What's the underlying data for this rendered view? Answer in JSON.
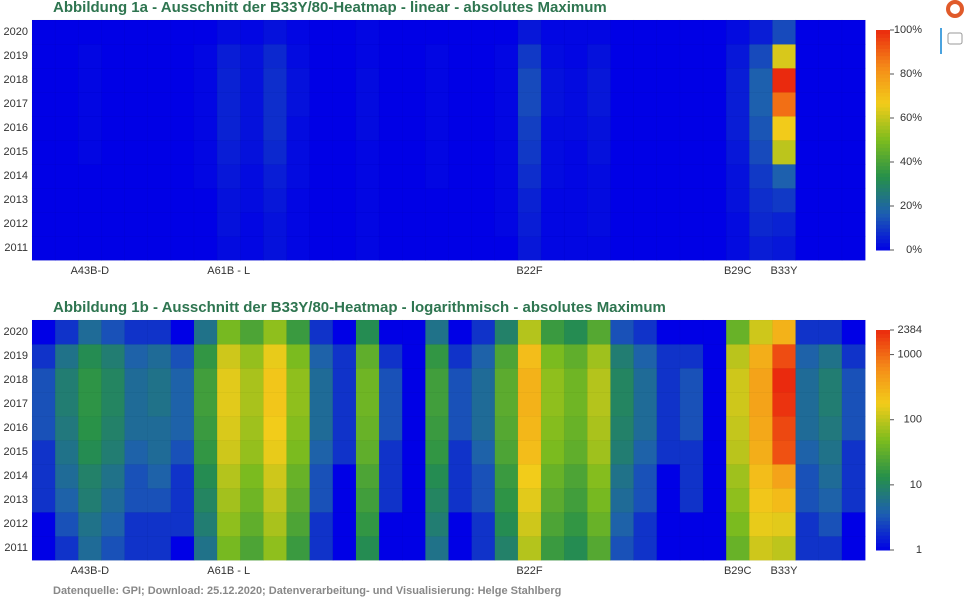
{
  "chart_data": [
    {
      "type": "heatmap",
      "title": "Abbildung 1a - Ausschnitt der B33Y/80-Heatmap - linear - absolutes Maximum",
      "categories": [
        null,
        null,
        "A43B-D",
        null,
        null,
        null,
        null,
        null,
        "A61B  -  L",
        null,
        null,
        null,
        null,
        null,
        null,
        null,
        null,
        null,
        null,
        null,
        null,
        "B22F",
        null,
        null,
        null,
        null,
        null,
        null,
        null,
        null,
        "B29C",
        null,
        "B33Y",
        null,
        null,
        null
      ],
      "y": [
        2011,
        2012,
        2013,
        2014,
        2015,
        2016,
        2017,
        2018,
        2019,
        2020
      ],
      "z": [
        [
          0,
          0,
          0,
          0,
          0,
          0,
          0,
          0,
          2,
          1,
          3,
          1,
          0,
          0,
          1,
          0,
          0,
          0,
          0,
          0,
          0,
          4,
          1,
          1,
          1,
          0,
          0,
          0,
          0,
          0,
          2,
          5,
          4,
          0,
          0,
          0
        ],
        [
          0,
          0,
          0,
          0,
          0,
          0,
          0,
          0,
          3,
          1,
          3,
          1,
          0,
          0,
          1,
          0,
          0,
          0,
          0,
          0,
          1,
          5,
          1,
          1,
          2,
          0,
          0,
          0,
          0,
          0,
          2,
          7,
          6,
          0,
          0,
          0
        ],
        [
          0,
          0,
          0,
          0,
          0,
          0,
          0,
          0,
          3,
          2,
          4,
          1,
          0,
          0,
          1,
          0,
          0,
          0,
          0,
          0,
          1,
          6,
          1,
          1,
          2,
          0,
          0,
          0,
          0,
          0,
          3,
          8,
          10,
          0,
          0,
          0
        ],
        [
          0,
          0,
          0,
          0,
          0,
          0,
          0,
          1,
          4,
          2,
          5,
          2,
          0,
          0,
          1,
          0,
          0,
          1,
          0,
          0,
          1,
          8,
          2,
          1,
          2,
          0,
          0,
          0,
          0,
          0,
          3,
          10,
          17,
          0,
          0,
          0
        ],
        [
          0,
          0,
          1,
          0,
          0,
          0,
          0,
          1,
          5,
          3,
          7,
          2,
          0,
          0,
          1,
          0,
          0,
          1,
          0,
          0,
          1,
          10,
          2,
          1,
          3,
          0,
          0,
          0,
          0,
          0,
          4,
          13,
          59,
          0,
          0,
          0
        ],
        [
          0,
          0,
          1,
          0,
          0,
          0,
          0,
          1,
          6,
          3,
          8,
          2,
          0,
          0,
          2,
          0,
          0,
          1,
          0,
          0,
          1,
          11,
          2,
          2,
          3,
          0,
          0,
          0,
          0,
          0,
          5,
          15,
          67,
          0,
          0,
          0
        ],
        [
          0,
          0,
          1,
          0,
          0,
          0,
          0,
          1,
          6,
          3,
          8,
          3,
          0,
          0,
          2,
          0,
          0,
          1,
          0,
          0,
          1,
          13,
          3,
          2,
          4,
          0,
          0,
          0,
          0,
          0,
          5,
          17,
          88,
          0,
          0,
          0
        ],
        [
          0,
          0,
          1,
          0,
          0,
          0,
          0,
          1,
          6,
          3,
          8,
          3,
          0,
          0,
          2,
          0,
          0,
          1,
          0,
          0,
          1,
          13,
          3,
          2,
          4,
          0,
          0,
          0,
          0,
          0,
          5,
          17,
          100,
          0,
          0,
          0
        ],
        [
          0,
          0,
          1,
          0,
          0,
          0,
          0,
          1,
          5,
          3,
          7,
          2,
          0,
          0,
          1,
          0,
          0,
          1,
          0,
          0,
          1,
          10,
          2,
          1,
          3,
          0,
          0,
          0,
          0,
          0,
          4,
          13,
          63,
          0,
          0,
          0
        ],
        [
          0,
          0,
          0,
          0,
          0,
          0,
          0,
          0,
          2,
          1,
          3,
          1,
          0,
          0,
          1,
          0,
          0,
          0,
          0,
          0,
          0,
          4,
          1,
          1,
          1,
          0,
          0,
          0,
          0,
          0,
          2,
          5,
          13,
          0,
          0,
          0
        ]
      ],
      "zlim": [
        0,
        100
      ],
      "log_scale": false,
      "zticks": [
        {
          "value": 0,
          "label": "0%"
        },
        {
          "value": 20,
          "label": "20%"
        },
        {
          "value": 40,
          "label": "40%"
        },
        {
          "value": 60,
          "label": "60%"
        },
        {
          "value": 80,
          "label": "80%"
        },
        {
          "value": 100,
          "label": "100%"
        }
      ],
      "colorscale": [
        "#0000e6",
        "#1d5fb0",
        "#26904a",
        "#7cbc1e",
        "#f2cc1a",
        "#f58a18",
        "#ea2a0e"
      ]
    },
    {
      "type": "heatmap",
      "title": "Abbildung 1b - Ausschnitt der B33Y/80-Heatmap - logarithmisch - absolutes Maximum",
      "categories": [
        null,
        null,
        "A43B-D",
        null,
        null,
        null,
        null,
        null,
        "A61B  -  L",
        null,
        null,
        null,
        null,
        null,
        null,
        null,
        null,
        null,
        null,
        null,
        null,
        "B22F",
        null,
        null,
        null,
        null,
        null,
        null,
        null,
        null,
        "B29C",
        null,
        "B33Y",
        null,
        null,
        null
      ],
      "y": [
        2011,
        2012,
        2013,
        2014,
        2015,
        2016,
        2017,
        2018,
        2019,
        2020
      ],
      "z": [
        [
          1,
          2,
          5,
          3,
          2,
          2,
          1,
          6,
          45,
          24,
          60,
          18,
          2,
          1,
          12,
          1,
          1,
          6,
          1,
          2,
          9,
          90,
          18,
          12,
          27,
          3,
          2,
          1,
          1,
          1,
          36,
          120,
          100,
          2,
          2,
          1
        ],
        [
          1,
          3,
          6,
          4,
          2,
          2,
          2,
          8,
          60,
          32,
          80,
          24,
          2,
          1,
          16,
          1,
          1,
          8,
          1,
          2,
          12,
          120,
          24,
          16,
          36,
          4,
          2,
          1,
          1,
          1,
          48,
          160,
          150,
          2,
          3,
          1
        ],
        [
          2,
          4,
          8,
          5,
          3,
          3,
          2,
          10,
          75,
          40,
          100,
          30,
          3,
          1,
          20,
          2,
          1,
          10,
          2,
          3,
          15,
          150,
          30,
          20,
          45,
          5,
          3,
          1,
          2,
          1,
          60,
          200,
          250,
          3,
          4,
          2
        ],
        [
          2,
          5,
          9,
          6,
          3,
          4,
          2,
          12,
          90,
          48,
          120,
          36,
          3,
          1,
          24,
          2,
          1,
          12,
          2,
          3,
          18,
          180,
          36,
          24,
          54,
          6,
          3,
          1,
          2,
          1,
          72,
          240,
          400,
          3,
          5,
          2
        ],
        [
          2,
          6,
          12,
          8,
          4,
          5,
          3,
          16,
          120,
          64,
          160,
          48,
          4,
          2,
          32,
          2,
          1,
          16,
          2,
          4,
          24,
          240,
          48,
          32,
          72,
          8,
          4,
          2,
          2,
          1,
          96,
          320,
          1400,
          4,
          6,
          2
        ],
        [
          3,
          7,
          14,
          9,
          5,
          5,
          4,
          18,
          135,
          72,
          180,
          54,
          5,
          2,
          36,
          3,
          1,
          18,
          3,
          5,
          27,
          270,
          54,
          36,
          81,
          9,
          5,
          2,
          3,
          1,
          108,
          360,
          1600,
          5,
          7,
          3
        ],
        [
          3,
          8,
          15,
          10,
          5,
          6,
          4,
          20,
          150,
          80,
          200,
          60,
          5,
          2,
          40,
          3,
          1,
          20,
          3,
          5,
          30,
          300,
          60,
          40,
          90,
          10,
          5,
          2,
          3,
          1,
          120,
          400,
          2100,
          5,
          8,
          3
        ],
        [
          3,
          8,
          15,
          10,
          5,
          6,
          4,
          20,
          150,
          80,
          200,
          60,
          5,
          2,
          40,
          3,
          1,
          20,
          3,
          5,
          30,
          300,
          60,
          40,
          90,
          10,
          5,
          2,
          3,
          1,
          120,
          400,
          2384,
          5,
          8,
          3
        ],
        [
          2,
          6,
          12,
          8,
          4,
          5,
          3,
          16,
          120,
          64,
          160,
          48,
          4,
          2,
          32,
          2,
          1,
          16,
          2,
          4,
          24,
          240,
          48,
          32,
          72,
          8,
          4,
          2,
          2,
          1,
          96,
          320,
          1500,
          4,
          6,
          2
        ],
        [
          1,
          2,
          5,
          3,
          2,
          2,
          1,
          6,
          45,
          24,
          60,
          18,
          2,
          1,
          12,
          1,
          1,
          6,
          1,
          2,
          9,
          90,
          18,
          12,
          27,
          3,
          2,
          1,
          1,
          1,
          36,
          120,
          300,
          2,
          2,
          1
        ]
      ],
      "zlim": [
        1,
        2384
      ],
      "log_scale": true,
      "zticks": [
        1,
        10,
        100,
        1000,
        2384
      ],
      "colorscale": [
        "#0000e6",
        "#1d5fb0",
        "#26904a",
        "#7cbc1e",
        "#f2cc1a",
        "#f58a18",
        "#ea2a0e"
      ]
    }
  ],
  "source": "Datenquelle: GPI; Download: 25.12.2020; Datenverarbeitung- und Visualisierung: Helge Stahlberg"
}
